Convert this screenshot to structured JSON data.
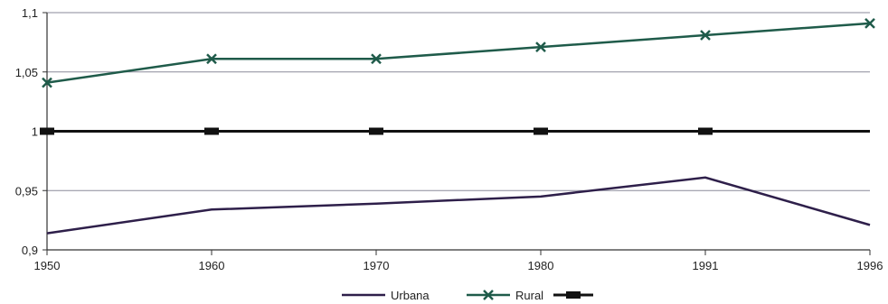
{
  "chart_data": {
    "type": "line",
    "categories": [
      "1950",
      "1960",
      "1970",
      "1980",
      "1991",
      "1996"
    ],
    "ylim": [
      0.9,
      1.1
    ],
    "y_ticks": [
      "0,9",
      "0,95",
      "1",
      "1,05",
      "1,1"
    ],
    "y_tick_values": [
      0.9,
      0.95,
      1.0,
      1.05,
      1.1
    ],
    "grid": true,
    "legend_position": "bottom",
    "series": [
      {
        "name": "Urbana",
        "values": [
          0.914,
          0.934,
          0.939,
          0.945,
          0.961,
          0.921
        ],
        "color": "#2e1f4a",
        "marker": "none"
      },
      {
        "name": "Rural",
        "values": [
          1.041,
          1.061,
          1.061,
          1.071,
          1.081,
          1.091
        ],
        "color": "#1f5b4a",
        "marker": "x"
      },
      {
        "name": "",
        "values": [
          1.0,
          1.0,
          1.0,
          1.0,
          1.0,
          1.0
        ],
        "color": "#111111",
        "marker": "square"
      }
    ]
  }
}
